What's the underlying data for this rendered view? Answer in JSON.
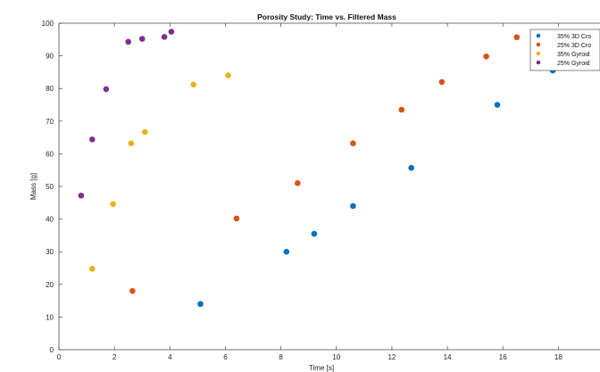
{
  "chart_data": {
    "type": "scatter",
    "title": "Porosity Study: Time vs. Filtered Mass",
    "xlabel": "Time [s]",
    "ylabel": "Mass [g]",
    "xlim": [
      0,
      19.5
    ],
    "ylim": [
      0,
      100
    ],
    "xticks": [
      0,
      2,
      4,
      6,
      8,
      10,
      12,
      14,
      16,
      18
    ],
    "yticks": [
      0,
      10,
      20,
      30,
      40,
      50,
      60,
      70,
      80,
      90,
      100
    ],
    "grid": false,
    "legend_position": "top-right",
    "series": [
      {
        "name": "35% 3D Cro",
        "color": "#0072BD",
        "x": [
          5.1,
          8.2,
          9.2,
          10.6,
          12.7,
          15.8,
          17.8
        ],
        "y": [
          14,
          30,
          35.5,
          44,
          55.7,
          75,
          85.5
        ]
      },
      {
        "name": "25% 3D Cro",
        "color": "#D95319",
        "x": [
          2.65,
          6.4,
          8.6,
          10.6,
          12.35,
          13.8,
          15.4,
          16.5
        ],
        "y": [
          18,
          40.2,
          51,
          63.2,
          73.5,
          82,
          89.8,
          95.7
        ]
      },
      {
        "name": "35% Gyroid",
        "color": "#EDB120",
        "x": [
          1.2,
          1.95,
          2.6,
          3.1,
          4.85,
          6.1
        ],
        "y": [
          24.8,
          44.6,
          63.2,
          66.7,
          81.2,
          84
        ]
      },
      {
        "name": "25% Gyroid",
        "color": "#7E2F8E",
        "x": [
          0.8,
          1.2,
          1.7,
          2.5,
          3.0,
          3.8,
          4.05
        ],
        "y": [
          47.2,
          64.4,
          79.8,
          94.3,
          95.2,
          95.8,
          97.4
        ]
      }
    ]
  }
}
